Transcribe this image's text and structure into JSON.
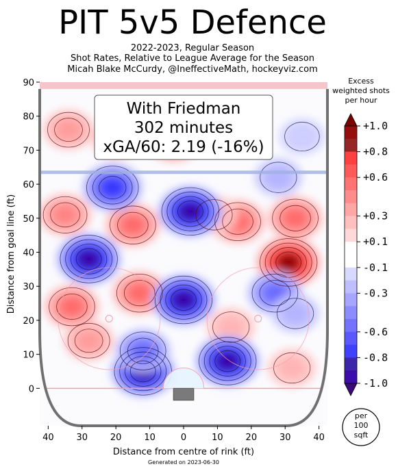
{
  "header": {
    "title": "PIT 5v5 Defence",
    "subtitle_lines": [
      "2022-2023, Regular Season",
      "Shot Rates, Relative to League Average for the Season",
      "Micah Blake McCurdy, @IneffectiveMath, hockeyviz.com"
    ]
  },
  "annotation": {
    "lines": [
      "With Friedman",
      "302 minutes",
      "xGA/60: 2.19 (-16%)"
    ]
  },
  "footer": {
    "generated": "Generated on 2023-06-30"
  },
  "per_unit_badge": {
    "lines": [
      "per",
      "100",
      "sqft"
    ]
  },
  "colors": {
    "positive": "#ff0000",
    "negative": "#0000ff",
    "neutral": "#ffffff",
    "boards": "#707070",
    "goal_line": "#f4a0a8",
    "blue_line": "#9fb0e0",
    "net": "#7a7a7a"
  },
  "chart_data": {
    "type": "heatmap",
    "xlabel": "Distance from centre of rink (ft)",
    "ylabel": "Distance from goal line (ft)",
    "x_ticks": [
      {
        "value": -40,
        "label": "40"
      },
      {
        "value": -30,
        "label": "30"
      },
      {
        "value": -20,
        "label": "20"
      },
      {
        "value": -10,
        "label": "10"
      },
      {
        "value": 0,
        "label": "0"
      },
      {
        "value": 10,
        "label": "10"
      },
      {
        "value": 20,
        "label": "20"
      },
      {
        "value": 30,
        "label": "30"
      },
      {
        "value": 40,
        "label": "40"
      }
    ],
    "y_ticks": [
      0,
      10,
      20,
      30,
      40,
      50,
      60,
      70,
      80,
      90
    ],
    "xlim": [
      -42.5,
      42.5
    ],
    "ylim": [
      -11,
      90
    ],
    "colorbar": {
      "title_lines": [
        "Excess",
        "weighted shots",
        "per hour"
      ],
      "range": [
        -1,
        1
      ],
      "ticks": [
        {
          "value": 1.0,
          "label": "+1.0"
        },
        {
          "value": 0.8,
          "label": "+0.8"
        },
        {
          "value": 0.6,
          "label": "+0.6"
        },
        {
          "value": 0.3,
          "label": "+0.3"
        },
        {
          "value": 0.1,
          "label": "+0.1"
        },
        {
          "value": -0.1,
          "label": "-0.1"
        },
        {
          "value": -0.3,
          "label": "-0.3"
        },
        {
          "value": -0.6,
          "label": "-0.6"
        },
        {
          "value": -0.8,
          "label": "-0.8"
        },
        {
          "value": -1.0,
          "label": "-1.0"
        }
      ]
    },
    "hotspots": [
      {
        "x": 31,
        "y": 37,
        "value": 1.0
      },
      {
        "x": 16,
        "y": 49,
        "value": 0.6
      },
      {
        "x": 33,
        "y": 50,
        "value": 0.6
      },
      {
        "x": -35,
        "y": 51,
        "value": 0.5
      },
      {
        "x": -15,
        "y": 48,
        "value": 0.6
      },
      {
        "x": -13,
        "y": 28,
        "value": 0.6
      },
      {
        "x": -33,
        "y": 24,
        "value": 0.6
      },
      {
        "x": -28,
        "y": 14,
        "value": 0.4
      },
      {
        "x": -34,
        "y": 76,
        "value": 0.4
      },
      {
        "x": -3,
        "y": 73,
        "value": 0.6
      },
      {
        "x": -20,
        "y": 73,
        "value": 0.3
      },
      {
        "x": 14,
        "y": 18,
        "value": 0.3
      },
      {
        "x": 32,
        "y": 6,
        "value": 0.3
      },
      {
        "x": 9,
        "y": 51,
        "value": 0.3
      },
      {
        "x": 35,
        "y": 74,
        "value": -0.2
      },
      {
        "x": 2,
        "y": 52,
        "value": -1.0
      },
      {
        "x": 0,
        "y": 26,
        "value": -1.0
      },
      {
        "x": -28,
        "y": 38,
        "value": -1.0
      },
      {
        "x": 13,
        "y": 8,
        "value": -1.0
      },
      {
        "x": -12,
        "y": 5,
        "value": -1.0
      },
      {
        "x": 27,
        "y": 28,
        "value": -0.6
      },
      {
        "x": -21,
        "y": 59,
        "value": -0.8
      },
      {
        "x": 28,
        "y": 62,
        "value": -0.3
      },
      {
        "x": -12,
        "y": 11,
        "value": -0.6
      },
      {
        "x": 33,
        "y": 22,
        "value": -0.3
      }
    ]
  }
}
